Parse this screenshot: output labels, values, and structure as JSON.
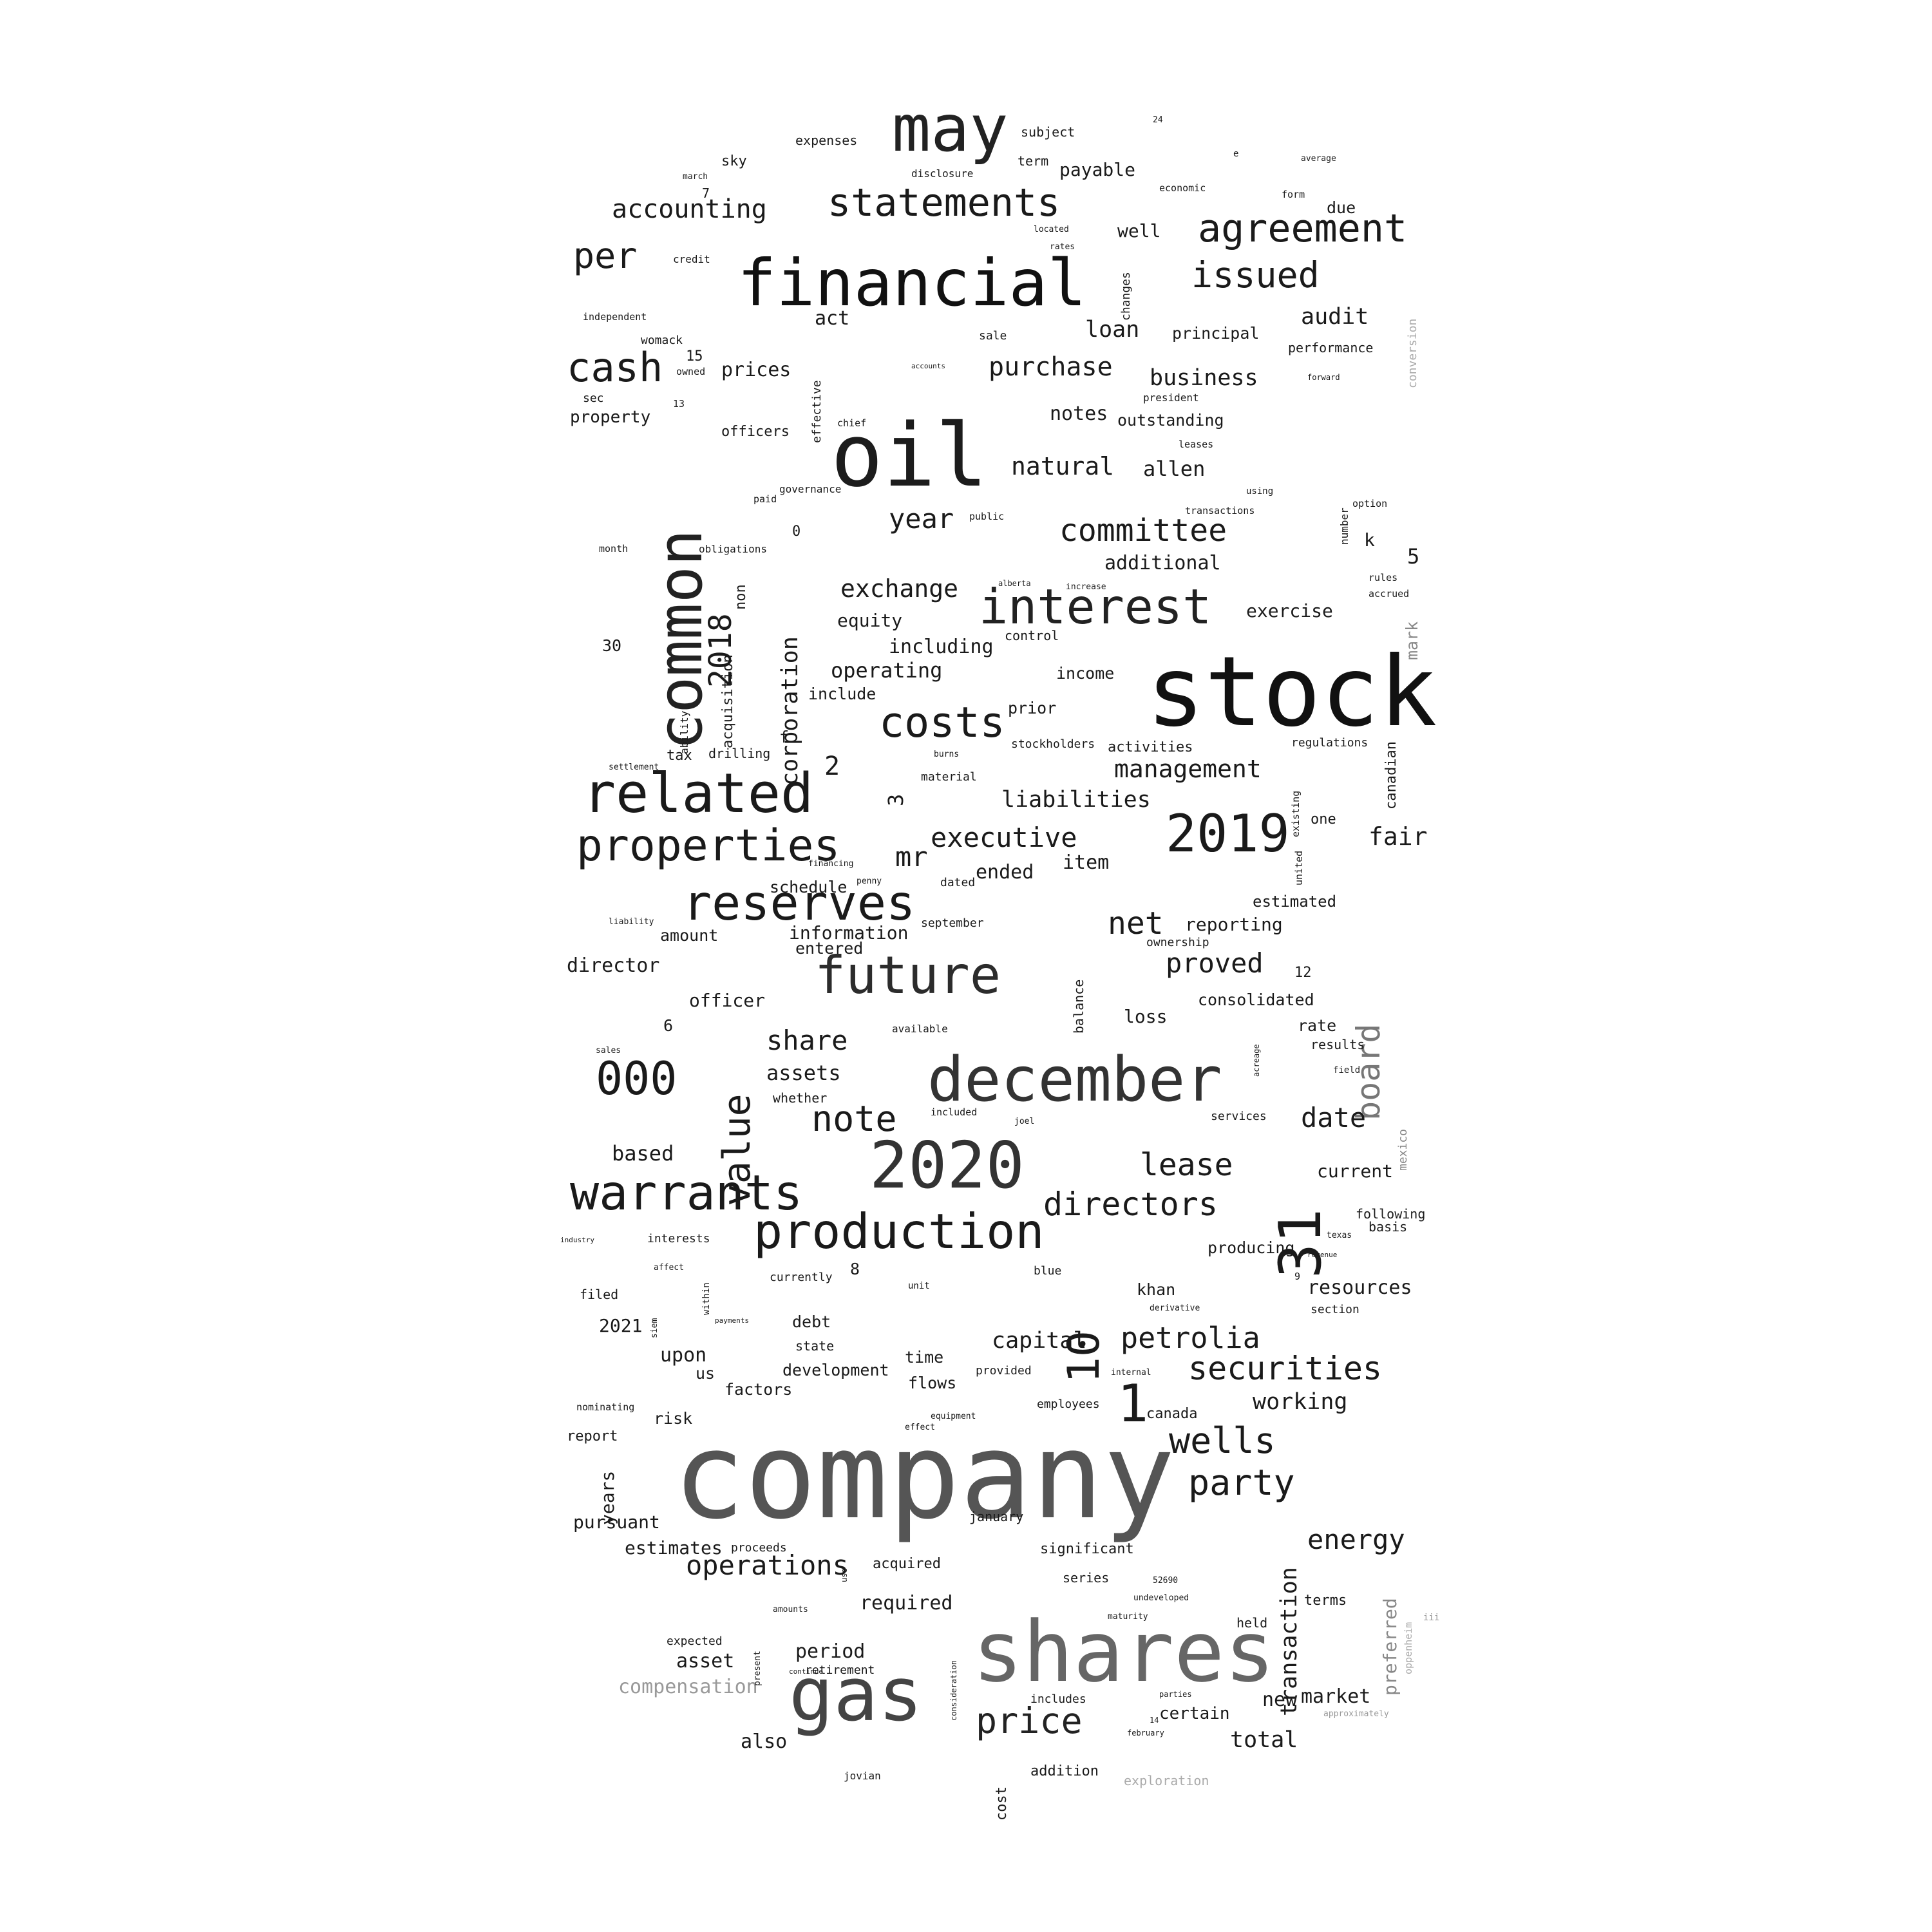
{
  "words": [
    {
      "text": "company",
      "color": "#555555"
    },
    {
      "text": "stock",
      "color": "#111111"
    },
    {
      "text": "oil",
      "color": "#1c1c1c"
    },
    {
      "text": "shares",
      "color": "#666666"
    },
    {
      "text": "financial",
      "color": "#111111"
    },
    {
      "text": "common",
      "color": "#222222"
    },
    {
      "text": "may",
      "color": "#222222"
    },
    {
      "text": "december",
      "color": "#333333"
    },
    {
      "text": "2020",
      "color": "#333333"
    },
    {
      "text": "gas",
      "color": "#444444"
    },
    {
      "text": "related",
      "color": "#1a1a1a"
    },
    {
      "text": "interest",
      "color": "#222222"
    },
    {
      "text": "future",
      "color": "#2c2c2c"
    },
    {
      "text": "reserves",
      "color": "#1a1a1a"
    },
    {
      "text": "warrants",
      "color": "#1a1a1a"
    },
    {
      "text": "production",
      "color": "#1a1a1a"
    },
    {
      "text": "2019",
      "color": "#1a1a1a"
    },
    {
      "text": "properties",
      "color": "#1a1a1a"
    },
    {
      "text": "statements",
      "color": "#1a1a1a"
    },
    {
      "text": "agreement",
      "color": "#1a1a1a"
    },
    {
      "text": "cash",
      "color": "#1a1a1a"
    },
    {
      "text": "costs",
      "color": "#1a1a1a"
    },
    {
      "text": "000",
      "color": "#1a1a1a"
    },
    {
      "text": "31",
      "color": "#1a1a1a"
    },
    {
      "text": "price",
      "color": "#222222"
    },
    {
      "text": "wells",
      "color": "#1a1a1a"
    },
    {
      "text": "party",
      "color": "#1a1a1a"
    },
    {
      "text": "securities",
      "color": "#1a1a1a"
    },
    {
      "text": "value",
      "color": "#1a1a1a"
    },
    {
      "text": "board",
      "color": "#777777"
    },
    {
      "text": "note",
      "color": "#1a1a1a"
    },
    {
      "text": "directors",
      "color": "#1a1a1a"
    },
    {
      "text": "petrolia",
      "color": "#1a1a1a"
    },
    {
      "text": "1",
      "color": "#1a1a1a"
    },
    {
      "text": "10",
      "color": "#1a1a1a"
    },
    {
      "text": "issued",
      "color": "#1a1a1a"
    },
    {
      "text": "per",
      "color": "#1a1a1a"
    },
    {
      "text": "committee",
      "color": "#1a1a1a"
    },
    {
      "text": "accounting",
      "color": "#1a1a1a"
    },
    {
      "text": "operations",
      "color": "#1a1a1a"
    },
    {
      "text": "energy",
      "color": "#1a1a1a"
    },
    {
      "text": "lease",
      "color": "#1a1a1a"
    },
    {
      "text": "net",
      "color": "#1a1a1a"
    },
    {
      "text": "2018",
      "color": "#1a1a1a"
    },
    {
      "text": "executive",
      "color": "#1a1a1a"
    },
    {
      "text": "share",
      "color": "#1a1a1a"
    },
    {
      "text": "purchase",
      "color": "#1a1a1a"
    },
    {
      "text": "exchange",
      "color": "#1a1a1a"
    },
    {
      "text": "year",
      "color": "#1a1a1a"
    },
    {
      "text": "natural",
      "color": "#1a1a1a"
    },
    {
      "text": "management",
      "color": "#1a1a1a"
    },
    {
      "text": "liabilities",
      "color": "#1a1a1a"
    },
    {
      "text": "business",
      "color": "#1a1a1a"
    },
    {
      "text": "date",
      "color": "#1a1a1a"
    },
    {
      "text": "proved",
      "color": "#1a1a1a"
    },
    {
      "text": "compensation",
      "color": "#999999"
    },
    {
      "text": "exploration",
      "color": "#aaaaaa"
    },
    {
      "text": "transaction",
      "color": "#1a1a1a"
    },
    {
      "text": "preferred",
      "color": "#888888"
    },
    {
      "text": "corporation",
      "color": "#1a1a1a"
    },
    {
      "text": "mr",
      "color": "#1a1a1a"
    },
    {
      "text": "loan",
      "color": "#1a1a1a"
    },
    {
      "text": "audit",
      "color": "#1a1a1a"
    },
    {
      "text": "capital",
      "color": "#1a1a1a"
    },
    {
      "text": "working",
      "color": "#1a1a1a"
    },
    {
      "text": "fair",
      "color": "#1a1a1a"
    },
    {
      "text": "resources",
      "color": "#1a1a1a"
    },
    {
      "text": "market",
      "color": "#1a1a1a"
    },
    {
      "text": "total",
      "color": "#1a1a1a"
    },
    {
      "text": "also",
      "color": "#1a1a1a"
    },
    {
      "text": "period",
      "color": "#1a1a1a"
    },
    {
      "text": "asset",
      "color": "#1a1a1a"
    },
    {
      "text": "required",
      "color": "#1a1a1a"
    },
    {
      "text": "estimates",
      "color": "#1a1a1a"
    },
    {
      "text": "pursuant",
      "color": "#1a1a1a"
    },
    {
      "text": "years",
      "color": "#1a1a1a"
    },
    {
      "text": "upon",
      "color": "#1a1a1a"
    },
    {
      "text": "2021",
      "color": "#1a1a1a"
    },
    {
      "text": "based",
      "color": "#1a1a1a"
    },
    {
      "text": "director",
      "color": "#1a1a1a"
    },
    {
      "text": "officer",
      "color": "#1a1a1a"
    },
    {
      "text": "assets",
      "color": "#1a1a1a"
    },
    {
      "text": "amount",
      "color": "#1a1a1a"
    },
    {
      "text": "information",
      "color": "#1a1a1a"
    },
    {
      "text": "entered",
      "color": "#1a1a1a"
    },
    {
      "text": "schedule",
      "color": "#1a1a1a"
    },
    {
      "text": "ended",
      "color": "#1a1a1a"
    },
    {
      "text": "item",
      "color": "#1a1a1a"
    },
    {
      "text": "operating",
      "color": "#1a1a1a"
    },
    {
      "text": "including",
      "color": "#1a1a1a"
    },
    {
      "text": "equity",
      "color": "#1a1a1a"
    },
    {
      "text": "include",
      "color": "#1a1a1a"
    },
    {
      "text": "prices",
      "color": "#1a1a1a"
    },
    {
      "text": "property",
      "color": "#1a1a1a"
    },
    {
      "text": "officers",
      "color": "#1a1a1a"
    },
    {
      "text": "act",
      "color": "#1a1a1a"
    },
    {
      "text": "notes",
      "color": "#1a1a1a"
    },
    {
      "text": "outstanding",
      "color": "#1a1a1a"
    },
    {
      "text": "allen",
      "color": "#1a1a1a"
    },
    {
      "text": "additional",
      "color": "#1a1a1a"
    },
    {
      "text": "exercise",
      "color": "#1a1a1a"
    },
    {
      "text": "income",
      "color": "#1a1a1a"
    },
    {
      "text": "prior",
      "color": "#1a1a1a"
    },
    {
      "text": "activities",
      "color": "#1a1a1a"
    },
    {
      "text": "stockholders",
      "color": "#1a1a1a"
    },
    {
      "text": "payable",
      "color": "#1a1a1a"
    },
    {
      "text": "well",
      "color": "#1a1a1a"
    },
    {
      "text": "principal",
      "color": "#1a1a1a"
    },
    {
      "text": "performance",
      "color": "#1a1a1a"
    },
    {
      "text": "due",
      "color": "#1a1a1a"
    },
    {
      "text": "reporting",
      "color": "#1a1a1a"
    },
    {
      "text": "consolidated",
      "color": "#1a1a1a"
    },
    {
      "text": "loss",
      "color": "#1a1a1a"
    },
    {
      "text": "rate",
      "color": "#1a1a1a"
    },
    {
      "text": "results",
      "color": "#1a1a1a"
    },
    {
      "text": "estimated",
      "color": "#1a1a1a"
    },
    {
      "text": "current",
      "color": "#1a1a1a"
    },
    {
      "text": "following",
      "color": "#1a1a1a"
    },
    {
      "text": "basis",
      "color": "#1a1a1a"
    },
    {
      "text": "producing",
      "color": "#1a1a1a"
    },
    {
      "text": "khan",
      "color": "#1a1a1a"
    },
    {
      "text": "terms",
      "color": "#1a1a1a"
    },
    {
      "text": "new",
      "color": "#1a1a1a"
    },
    {
      "text": "certain",
      "color": "#1a1a1a"
    },
    {
      "text": "addition",
      "color": "#1a1a1a"
    },
    {
      "text": "cost",
      "color": "#1a1a1a"
    },
    {
      "text": "development",
      "color": "#1a1a1a"
    },
    {
      "text": "factors",
      "color": "#1a1a1a"
    },
    {
      "text": "time",
      "color": "#1a1a1a"
    },
    {
      "text": "flows",
      "color": "#1a1a1a"
    },
    {
      "text": "debt",
      "color": "#1a1a1a"
    },
    {
      "text": "state",
      "color": "#1a1a1a"
    },
    {
      "text": "risk",
      "color": "#1a1a1a"
    },
    {
      "text": "report",
      "color": "#1a1a1a"
    },
    {
      "text": "us",
      "color": "#1a1a1a"
    },
    {
      "text": "significant",
      "color": "#1a1a1a"
    },
    {
      "text": "series",
      "color": "#1a1a1a"
    },
    {
      "text": "acquired",
      "color": "#1a1a1a"
    },
    {
      "text": "canada",
      "color": "#1a1a1a"
    },
    {
      "text": "sky",
      "color": "#1a1a1a"
    },
    {
      "text": "expenses",
      "color": "#1a1a1a"
    },
    {
      "text": "subject",
      "color": "#1a1a1a"
    },
    {
      "text": "term",
      "color": "#1a1a1a"
    },
    {
      "text": "mark",
      "color": "#888888"
    },
    {
      "text": "canadian",
      "color": "#1a1a1a"
    },
    {
      "text": "acquisition",
      "color": "#1a1a1a"
    },
    {
      "text": "non",
      "color": "#1a1a1a"
    },
    {
      "text": "drilling",
      "color": "#1a1a1a"
    },
    {
      "text": "tax",
      "color": "#1a1a1a"
    },
    {
      "text": "regulations",
      "color": "#1a1a1a"
    },
    {
      "text": "one",
      "color": "#1a1a1a"
    },
    {
      "text": "independent",
      "color": "#1a1a1a"
    },
    {
      "text": "womack",
      "color": "#1a1a1a"
    },
    {
      "text": "sec",
      "color": "#1a1a1a"
    },
    {
      "text": "credit",
      "color": "#1a1a1a"
    },
    {
      "text": "effective",
      "color": "#1a1a1a"
    },
    {
      "text": "sale",
      "color": "#1a1a1a"
    },
    {
      "text": "changes",
      "color": "#1a1a1a"
    },
    {
      "text": "president",
      "color": "#1a1a1a"
    },
    {
      "text": "k",
      "color": "#1a1a1a"
    },
    {
      "text": "5",
      "color": "#1a1a1a"
    },
    {
      "text": "0",
      "color": "#1a1a1a"
    },
    {
      "text": "2",
      "color": "#1a1a1a"
    },
    {
      "text": "3",
      "color": "#1a1a1a"
    },
    {
      "text": "6",
      "color": "#1a1a1a"
    },
    {
      "text": "8",
      "color": "#1a1a1a"
    },
    {
      "text": "12",
      "color": "#1a1a1a"
    },
    {
      "text": "15",
      "color": "#1a1a1a"
    },
    {
      "text": "30",
      "color": "#1a1a1a"
    },
    {
      "text": "f",
      "color": "#1a1a1a"
    },
    {
      "text": "filed",
      "color": "#1a1a1a"
    },
    {
      "text": "nominating",
      "color": "#1a1a1a"
    },
    {
      "text": "interests",
      "color": "#1a1a1a"
    },
    {
      "text": "currently",
      "color": "#1a1a1a"
    },
    {
      "text": "provided",
      "color": "#1a1a1a"
    },
    {
      "text": "employees",
      "color": "#1a1a1a"
    },
    {
      "text": "blue",
      "color": "#1a1a1a"
    },
    {
      "text": "section",
      "color": "#1a1a1a"
    },
    {
      "text": "held",
      "color": "#1a1a1a"
    },
    {
      "text": "expected",
      "color": "#1a1a1a"
    },
    {
      "text": "retirement",
      "color": "#1a1a1a"
    },
    {
      "text": "january",
      "color": "#1a1a1a"
    },
    {
      "text": "proceeds",
      "color": "#1a1a1a"
    },
    {
      "text": "mexico",
      "color": "#888888"
    },
    {
      "text": "oppenheim",
      "color": "#aaaaaa"
    },
    {
      "text": "conversion",
      "color": "#aaaaaa"
    },
    {
      "text": "jovian",
      "color": "#1a1a1a"
    },
    {
      "text": "includes",
      "color": "#1a1a1a"
    },
    {
      "text": "services",
      "color": "#1a1a1a"
    },
    {
      "text": "available",
      "color": "#1a1a1a"
    },
    {
      "text": "whether",
      "color": "#1a1a1a"
    },
    {
      "text": "balance",
      "color": "#1a1a1a"
    },
    {
      "text": "ownership",
      "color": "#1a1a1a"
    },
    {
      "text": "september",
      "color": "#1a1a1a"
    },
    {
      "text": "dated",
      "color": "#1a1a1a"
    },
    {
      "text": "obligations",
      "color": "#1a1a1a"
    },
    {
      "text": "governance",
      "color": "#1a1a1a"
    },
    {
      "text": "control",
      "color": "#1a1a1a"
    },
    {
      "text": "number",
      "color": "#1a1a1a"
    },
    {
      "text": "economic",
      "color": "#1a1a1a"
    },
    {
      "text": "average",
      "color": "#1a1a1a"
    },
    {
      "text": "disclosure",
      "color": "#1a1a1a"
    },
    {
      "text": "form",
      "color": "#1a1a1a"
    },
    {
      "text": "material",
      "color": "#1a1a1a"
    },
    {
      "text": "month",
      "color": "#1a1a1a"
    },
    {
      "text": "paid",
      "color": "#1a1a1a"
    },
    {
      "text": "existing",
      "color": "#1a1a1a"
    },
    {
      "text": "united",
      "color": "#1a1a1a"
    },
    {
      "text": "transactions",
      "color": "#1a1a1a"
    },
    {
      "text": "leases",
      "color": "#1a1a1a"
    },
    {
      "text": "public",
      "color": "#1a1a1a"
    },
    {
      "text": "chief",
      "color": "#1a1a1a"
    },
    {
      "text": "owned",
      "color": "#1a1a1a"
    },
    {
      "text": "7",
      "color": "#1a1a1a"
    },
    {
      "text": "13",
      "color": "#1a1a1a"
    },
    {
      "text": "9",
      "color": "#1a1a1a"
    },
    {
      "text": "accrued",
      "color": "#1a1a1a"
    },
    {
      "text": "rules",
      "color": "#1a1a1a"
    },
    {
      "text": "option",
      "color": "#1a1a1a"
    },
    {
      "text": "march",
      "color": "#1a1a1a"
    },
    {
      "text": "located",
      "color": "#1a1a1a"
    },
    {
      "text": "rates",
      "color": "#1a1a1a"
    },
    {
      "text": "accounts",
      "color": "#1a1a1a"
    },
    {
      "text": "using",
      "color": "#1a1a1a"
    },
    {
      "text": "forward",
      "color": "#1a1a1a"
    },
    {
      "text": "ability",
      "color": "#1a1a1a"
    },
    {
      "text": "settlement",
      "color": "#1a1a1a"
    },
    {
      "text": "liability",
      "color": "#1a1a1a"
    },
    {
      "text": "sales",
      "color": "#1a1a1a"
    },
    {
      "text": "industry",
      "color": "#1a1a1a"
    },
    {
      "text": "affect",
      "color": "#1a1a1a"
    },
    {
      "text": "within",
      "color": "#1a1a1a"
    },
    {
      "text": "unit",
      "color": "#1a1a1a"
    },
    {
      "text": "derivative",
      "color": "#1a1a1a"
    },
    {
      "text": "internal",
      "color": "#1a1a1a"
    },
    {
      "text": "effect",
      "color": "#1a1a1a"
    },
    {
      "text": "equipment",
      "color": "#1a1a1a"
    },
    {
      "text": "payments",
      "color": "#1a1a1a"
    },
    {
      "text": "texas",
      "color": "#1a1a1a"
    },
    {
      "text": "revenue",
      "color": "#1a1a1a"
    },
    {
      "text": "field",
      "color": "#1a1a1a"
    },
    {
      "text": "acreage",
      "color": "#1a1a1a"
    },
    {
      "text": "joel",
      "color": "#1a1a1a"
    },
    {
      "text": "included",
      "color": "#1a1a1a"
    },
    {
      "text": "burns",
      "color": "#1a1a1a"
    },
    {
      "text": "penny",
      "color": "#1a1a1a"
    },
    {
      "text": "financing",
      "color": "#1a1a1a"
    },
    {
      "text": "alberta",
      "color": "#1a1a1a"
    },
    {
      "text": "increase",
      "color": "#1a1a1a"
    },
    {
      "text": "siem",
      "color": "#1a1a1a"
    },
    {
      "text": "amounts",
      "color": "#1a1a1a"
    },
    {
      "text": "present",
      "color": "#1a1a1a"
    },
    {
      "text": "continue",
      "color": "#1a1a1a"
    },
    {
      "text": "52690",
      "color": "#1a1a1a"
    },
    {
      "text": "maturity",
      "color": "#1a1a1a"
    },
    {
      "text": "undeveloped",
      "color": "#1a1a1a"
    },
    {
      "text": "14",
      "color": "#1a1a1a"
    },
    {
      "text": "parties",
      "color": "#1a1a1a"
    },
    {
      "text": "february",
      "color": "#1a1a1a"
    },
    {
      "text": "approximately",
      "color": "#999999"
    },
    {
      "text": "consideration",
      "color": "#1a1a1a"
    },
    {
      "text": "use",
      "color": "#1a1a1a"
    },
    {
      "text": "iii",
      "color": "#999999"
    },
    {
      "text": "24",
      "color": "#1a1a1a"
    },
    {
      "text": "e",
      "color": "#1a1a1a"
    }
  ]
}
